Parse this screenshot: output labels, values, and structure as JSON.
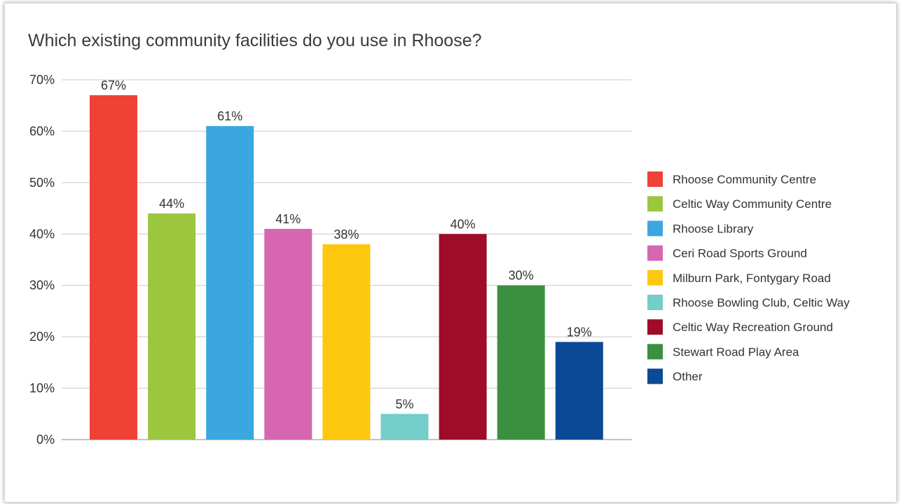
{
  "chart_data": {
    "type": "bar",
    "title": "Which existing community facilities do you use in Rhoose?",
    "xlabel": "",
    "ylabel": "",
    "ylim": [
      0,
      70
    ],
    "y_ticks": [
      "0%",
      "10%",
      "20%",
      "30%",
      "40%",
      "50%",
      "60%",
      "70%"
    ],
    "y_tick_values": [
      0,
      10,
      20,
      30,
      40,
      50,
      60,
      70
    ],
    "grid": true,
    "legend_position": "right",
    "categories": [
      "Rhoose Community Centre",
      "Celtic Way Community Centre",
      "Rhoose Library",
      "Ceri Road Sports Ground",
      "Milburn Park, Fontygary Road",
      "Rhoose Bowling Club, Celtic Way",
      "Celtic Way Recreation Ground",
      "Stewart Road Play Area",
      "Other"
    ],
    "values": [
      67,
      44,
      61,
      41,
      38,
      5,
      40,
      30,
      19
    ],
    "value_labels": [
      "67%",
      "44%",
      "61%",
      "41%",
      "38%",
      "5%",
      "40%",
      "30%",
      "19%"
    ],
    "colors": [
      "#ef4136",
      "#9dc63f",
      "#3aa7e0",
      "#d666b0",
      "#fdc70d",
      "#73cdc9",
      "#9e0c27",
      "#3a903e",
      "#0b4a96"
    ]
  }
}
